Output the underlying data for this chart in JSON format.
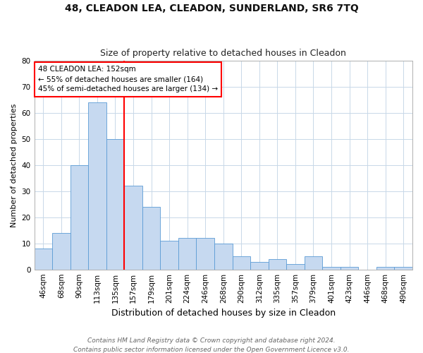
{
  "title": "48, CLEADON LEA, CLEADON, SUNDERLAND, SR6 7TQ",
  "subtitle": "Size of property relative to detached houses in Cleadon",
  "xlabel": "Distribution of detached houses by size in Cleadon",
  "ylabel": "Number of detached properties",
  "categories": [
    "46sqm",
    "68sqm",
    "90sqm",
    "113sqm",
    "135sqm",
    "157sqm",
    "179sqm",
    "201sqm",
    "224sqm",
    "246sqm",
    "268sqm",
    "290sqm",
    "312sqm",
    "335sqm",
    "357sqm",
    "379sqm",
    "401sqm",
    "423sqm",
    "446sqm",
    "468sqm",
    "490sqm"
  ],
  "values": [
    8,
    14,
    40,
    64,
    50,
    32,
    24,
    11,
    12,
    12,
    10,
    5,
    3,
    4,
    2,
    5,
    1,
    1,
    0,
    1,
    1
  ],
  "bar_color": "#c6d9f0",
  "bar_edge_color": "#5b9bd5",
  "vline_x": 4.5,
  "vline_color": "red",
  "ylim": [
    0,
    80
  ],
  "yticks": [
    0,
    10,
    20,
    30,
    40,
    50,
    60,
    70,
    80
  ],
  "annotation_text": "48 CLEADON LEA: 152sqm\n← 55% of detached houses are smaller (164)\n45% of semi-detached houses are larger (134) →",
  "annotation_box_color": "red",
  "footer_line1": "Contains HM Land Registry data © Crown copyright and database right 2024.",
  "footer_line2": "Contains public sector information licensed under the Open Government Licence v3.0.",
  "title_fontsize": 10,
  "subtitle_fontsize": 9,
  "xlabel_fontsize": 9,
  "ylabel_fontsize": 8,
  "tick_fontsize": 7.5,
  "annotation_fontsize": 7.5,
  "footer_fontsize": 6.5,
  "background_color": "#ffffff",
  "grid_color": "#c8d8e8"
}
